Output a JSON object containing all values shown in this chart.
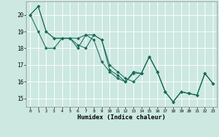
{
  "xlabel": "Humidex (Indice chaleur)",
  "background_color": "#cce8e0",
  "grid_color": "#ffffff",
  "line_color": "#1a6b5a",
  "xlim": [
    -0.5,
    23.5
  ],
  "ylim": [
    14.5,
    20.8
  ],
  "yticks": [
    15,
    16,
    17,
    18,
    19,
    20
  ],
  "xticks": [
    0,
    1,
    2,
    3,
    4,
    5,
    6,
    7,
    8,
    9,
    10,
    11,
    12,
    13,
    14,
    15,
    16,
    17,
    18,
    19,
    20,
    21,
    22,
    23
  ],
  "series": [
    [
      20.0,
      20.5,
      19.0,
      18.6,
      18.6,
      18.6,
      18.0,
      18.8,
      18.8,
      18.5,
      16.7,
      16.4,
      16.0,
      16.6,
      16.5,
      17.5,
      16.6,
      15.4,
      14.8,
      15.4,
      15.3,
      15.2,
      16.5,
      15.9
    ],
    [
      20.0,
      20.5,
      19.0,
      18.6,
      18.6,
      18.6,
      18.2,
      18.0,
      18.8,
      18.5,
      17.0,
      16.6,
      16.2,
      16.0,
      16.5,
      17.5,
      16.6,
      15.4,
      14.8,
      15.4,
      15.3,
      15.2,
      16.5,
      15.9
    ],
    [
      20.0,
      19.0,
      18.0,
      18.0,
      18.6,
      18.6,
      18.6,
      18.8,
      18.5,
      17.2,
      16.6,
      16.2,
      16.0,
      16.5,
      16.5,
      17.5,
      16.6,
      15.4,
      14.8,
      15.4,
      15.3,
      15.2,
      16.5,
      15.9
    ]
  ]
}
